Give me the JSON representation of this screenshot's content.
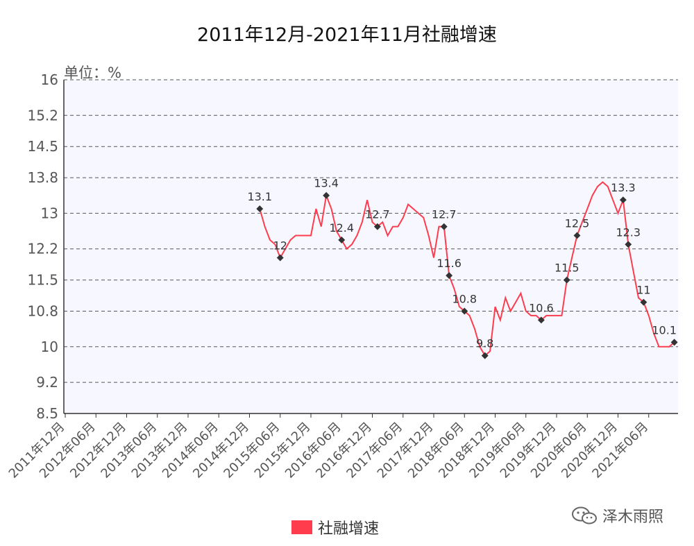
{
  "chart_data": {
    "type": "line",
    "title": "2011年12月-2021年11月社融增速",
    "unit_label": "单位：%",
    "yticks": [
      "16",
      "15.2",
      "14.5",
      "13.8",
      "13",
      "12.2",
      "11.5",
      "10.8",
      "10",
      "9.2",
      "8.5"
    ],
    "ylim": [
      8.5,
      16
    ],
    "xticks": [
      "2011年12月",
      "2012年06月",
      "2012年12月",
      "2013年06月",
      "2013年12月",
      "2014年06月",
      "2014年12月",
      "2015年06月",
      "2015年12月",
      "2016年06月",
      "2016年12月",
      "2017年06月",
      "2017年12月",
      "2018年06月",
      "2018年12月",
      "2019年06月",
      "2019年12月",
      "2020年06月",
      "2020年12月",
      "2021年06月"
    ],
    "grid": true,
    "legend_position": "bottom",
    "series": [
      {
        "name": "社融增速",
        "color": "#ff3b4e",
        "points": [
          [
            "2015-02",
            13.1
          ],
          [
            "2015-03",
            12.7
          ],
          [
            "2015-04",
            12.4
          ],
          [
            "2015-05",
            12.3
          ],
          [
            "2015-06",
            12.0
          ],
          [
            "2015-07",
            12.2
          ],
          [
            "2015-08",
            12.4
          ],
          [
            "2015-09",
            12.5
          ],
          [
            "2015-10",
            12.5
          ],
          [
            "2015-11",
            12.5
          ],
          [
            "2015-12",
            12.5
          ],
          [
            "2016-01",
            13.1
          ],
          [
            "2016-02",
            12.7
          ],
          [
            "2016-03",
            13.4
          ],
          [
            "2016-04",
            13.1
          ],
          [
            "2016-05",
            12.6
          ],
          [
            "2016-06",
            12.4
          ],
          [
            "2016-07",
            12.2
          ],
          [
            "2016-08",
            12.3
          ],
          [
            "2016-09",
            12.5
          ],
          [
            "2016-10",
            12.8
          ],
          [
            "2016-11",
            13.3
          ],
          [
            "2016-12",
            12.8
          ],
          [
            "2017-01",
            12.7
          ],
          [
            "2017-02",
            12.8
          ],
          [
            "2017-03",
            12.5
          ],
          [
            "2017-04",
            12.7
          ],
          [
            "2017-05",
            12.7
          ],
          [
            "2017-06",
            12.9
          ],
          [
            "2017-07",
            13.2
          ],
          [
            "2017-08",
            13.1
          ],
          [
            "2017-09",
            13.0
          ],
          [
            "2017-10",
            12.9
          ],
          [
            "2017-11",
            12.5
          ],
          [
            "2017-12",
            12.0
          ],
          [
            "2018-01",
            12.7
          ],
          [
            "2018-02",
            12.7
          ],
          [
            "2018-03",
            11.6
          ],
          [
            "2018-04",
            11.3
          ],
          [
            "2018-05",
            10.9
          ],
          [
            "2018-06",
            10.8
          ],
          [
            "2018-07",
            10.7
          ],
          [
            "2018-08",
            10.4
          ],
          [
            "2018-09",
            10.0
          ],
          [
            "2018-10",
            9.8
          ],
          [
            "2018-11",
            9.9
          ],
          [
            "2018-12",
            10.9
          ],
          [
            "2019-01",
            10.6
          ],
          [
            "2019-02",
            11.1
          ],
          [
            "2019-03",
            10.8
          ],
          [
            "2019-04",
            11.0
          ],
          [
            "2019-05",
            11.2
          ],
          [
            "2019-06",
            10.8
          ],
          [
            "2019-07",
            10.7
          ],
          [
            "2019-08",
            10.7
          ],
          [
            "2019-09",
            10.6
          ],
          [
            "2019-10",
            10.7
          ],
          [
            "2019-11",
            10.7
          ],
          [
            "2019-12",
            10.7
          ],
          [
            "2020-01",
            10.7
          ],
          [
            "2020-02",
            11.5
          ],
          [
            "2020-03",
            12.0
          ],
          [
            "2020-04",
            12.5
          ],
          [
            "2020-05",
            12.8
          ],
          [
            "2020-06",
            13.1
          ],
          [
            "2020-07",
            13.4
          ],
          [
            "2020-08",
            13.6
          ],
          [
            "2020-09",
            13.7
          ],
          [
            "2020-10",
            13.6
          ],
          [
            "2020-11",
            13.3
          ],
          [
            "2020-12",
            13.0
          ],
          [
            "2021-01",
            13.3
          ],
          [
            "2021-02",
            12.3
          ],
          [
            "2021-03",
            11.7
          ],
          [
            "2021-04",
            11.1
          ],
          [
            "2021-05",
            11.0
          ],
          [
            "2021-06",
            10.7
          ],
          [
            "2021-07",
            10.3
          ],
          [
            "2021-08",
            10.0
          ],
          [
            "2021-09",
            10.0
          ],
          [
            "2021-10",
            10.0
          ],
          [
            "2021-11",
            10.1
          ]
        ]
      }
    ],
    "labeled_points": [
      {
        "x": "2015-02",
        "y": 13.1,
        "label": "13.1"
      },
      {
        "x": "2015-06",
        "y": 12.0,
        "label": "12"
      },
      {
        "x": "2016-03",
        "y": 13.4,
        "label": "13.4"
      },
      {
        "x": "2016-06",
        "y": 12.4,
        "label": "12.4"
      },
      {
        "x": "2017-01",
        "y": 12.7,
        "label": "12.7"
      },
      {
        "x": "2018-02",
        "y": 12.7,
        "label": "12.7"
      },
      {
        "x": "2018-03",
        "y": 11.6,
        "label": "11.6"
      },
      {
        "x": "2018-06",
        "y": 10.8,
        "label": "10.8"
      },
      {
        "x": "2018-10",
        "y": 9.8,
        "label": "9.8"
      },
      {
        "x": "2019-09",
        "y": 10.6,
        "label": "10.6"
      },
      {
        "x": "2020-02",
        "y": 11.5,
        "label": "11.5"
      },
      {
        "x": "2020-04",
        "y": 12.5,
        "label": "12.5"
      },
      {
        "x": "2021-01",
        "y": 13.3,
        "label": "13.3"
      },
      {
        "x": "2021-02",
        "y": 12.3,
        "label": "12.3"
      },
      {
        "x": "2021-05",
        "y": 11.0,
        "label": "11"
      },
      {
        "x": "2021-11",
        "y": 10.1,
        "label": "10.1"
      }
    ]
  },
  "legend": {
    "label": "社融增速",
    "color": "#ff3b4e"
  },
  "watermark": {
    "text": "泽木雨照",
    "icon": "wechat-icon"
  },
  "colors": {
    "plot_background": "#f7f8ff",
    "grid": "#555555",
    "axis": "#333333"
  }
}
